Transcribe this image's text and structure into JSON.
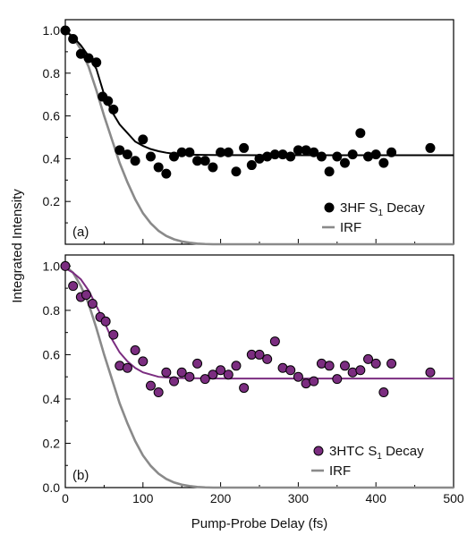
{
  "chart_data": [
    {
      "type": "scatter",
      "panel_label": "(a)",
      "title": "",
      "xlabel": "Pump-Probe Delay (fs)",
      "ylabel": "Integrated Intensity",
      "xlim": [
        0,
        500
      ],
      "ylim": [
        0,
        1.05
      ],
      "y_ticks": [
        "0.2",
        "0.4",
        "0.6",
        "0.8",
        "1.0"
      ],
      "legend_placement": "bottom-right",
      "series": [
        {
          "name": "3HF S1 Decay",
          "name_prefix": "3HF S",
          "name_sub": "1",
          "name_suffix": " Decay",
          "kind": "markers",
          "color": "#000000",
          "x": [
            0,
            10,
            20,
            30,
            40,
            48,
            55,
            62,
            70,
            80,
            90,
            100,
            110,
            120,
            130,
            140,
            150,
            160,
            170,
            180,
            190,
            200,
            210,
            220,
            230,
            240,
            250,
            260,
            270,
            280,
            290,
            300,
            310,
            320,
            330,
            340,
            350,
            360,
            370,
            380,
            390,
            400,
            410,
            420,
            470
          ],
          "y": [
            1.0,
            0.96,
            0.89,
            0.87,
            0.85,
            0.69,
            0.67,
            0.63,
            0.44,
            0.42,
            0.39,
            0.49,
            0.41,
            0.36,
            0.33,
            0.41,
            0.43,
            0.43,
            0.39,
            0.39,
            0.36,
            0.43,
            0.43,
            0.34,
            0.45,
            0.37,
            0.4,
            0.41,
            0.42,
            0.42,
            0.41,
            0.44,
            0.44,
            0.43,
            0.41,
            0.34,
            0.41,
            0.38,
            0.42,
            0.52,
            0.41,
            0.42,
            0.38,
            0.43,
            0.45
          ]
        },
        {
          "name": "3HF S1 Decay fit",
          "kind": "fit",
          "color": "#000000",
          "x": [
            0,
            10,
            20,
            30,
            40,
            50,
            60,
            70,
            80,
            90,
            100,
            110,
            120,
            130,
            140,
            150,
            175,
            200,
            250,
            300,
            350,
            400,
            450,
            500
          ],
          "y": [
            0.995,
            0.97,
            0.93,
            0.88,
            0.82,
            0.7,
            0.62,
            0.56,
            0.52,
            0.48,
            0.46,
            0.445,
            0.435,
            0.428,
            0.423,
            0.42,
            0.418,
            0.417,
            0.416,
            0.416,
            0.416,
            0.416,
            0.416,
            0.416
          ]
        },
        {
          "name": "IRF",
          "kind": "line",
          "color": "#8a8a8a",
          "x": [
            0,
            10,
            20,
            30,
            40,
            50,
            60,
            70,
            80,
            90,
            100,
            110,
            120,
            130,
            140,
            150,
            160,
            170,
            180,
            190,
            200,
            500
          ],
          "y": [
            1.0,
            0.97,
            0.91,
            0.83,
            0.72,
            0.6,
            0.49,
            0.38,
            0.29,
            0.21,
            0.145,
            0.098,
            0.063,
            0.039,
            0.023,
            0.013,
            0.007,
            0.003,
            0.001,
            0.0,
            0.0,
            0.0
          ]
        }
      ]
    },
    {
      "type": "scatter",
      "panel_label": "(b)",
      "title": "",
      "xlabel": "Pump-Probe Delay (fs)",
      "ylabel": "Integrated Intensity",
      "xlim": [
        0,
        500
      ],
      "ylim": [
        0,
        1.05
      ],
      "y_ticks": [
        "0.0",
        "0.2",
        "0.4",
        "0.6",
        "0.8",
        "1.0"
      ],
      "x_ticks": [
        "0",
        "100",
        "200",
        "300",
        "400",
        "500"
      ],
      "legend_placement": "bottom-right",
      "series": [
        {
          "name": "3HTC S1 Decay",
          "name_prefix": "3HTC S",
          "name_sub": "1",
          "name_suffix": " Decay",
          "kind": "markers",
          "color": "#7b2d80",
          "x": [
            0,
            10,
            20,
            27,
            35,
            45,
            52,
            62,
            70,
            80,
            90,
            100,
            110,
            120,
            130,
            140,
            150,
            160,
            170,
            180,
            190,
            200,
            210,
            220,
            230,
            240,
            250,
            260,
            270,
            280,
            290,
            300,
            310,
            320,
            330,
            340,
            350,
            360,
            370,
            380,
            390,
            400,
            410,
            420,
            470
          ],
          "y": [
            1.0,
            0.91,
            0.86,
            0.87,
            0.83,
            0.77,
            0.75,
            0.69,
            0.55,
            0.54,
            0.62,
            0.57,
            0.46,
            0.43,
            0.52,
            0.48,
            0.52,
            0.5,
            0.56,
            0.49,
            0.51,
            0.53,
            0.51,
            0.55,
            0.45,
            0.6,
            0.6,
            0.58,
            0.66,
            0.54,
            0.53,
            0.5,
            0.47,
            0.48,
            0.56,
            0.55,
            0.49,
            0.55,
            0.52,
            0.53,
            0.58,
            0.56,
            0.43,
            0.56,
            0.52
          ]
        },
        {
          "name": "3HTC S1 Decay fit",
          "kind": "fit",
          "color": "#7b2d80",
          "x": [
            0,
            10,
            20,
            30,
            40,
            50,
            60,
            70,
            80,
            90,
            100,
            110,
            120,
            130,
            140,
            150,
            175,
            200,
            250,
            300,
            350,
            400,
            450,
            500
          ],
          "y": [
            0.99,
            0.97,
            0.94,
            0.89,
            0.82,
            0.75,
            0.67,
            0.61,
            0.57,
            0.54,
            0.52,
            0.51,
            0.5,
            0.497,
            0.495,
            0.494,
            0.493,
            0.492,
            0.492,
            0.492,
            0.492,
            0.492,
            0.492,
            0.492
          ]
        },
        {
          "name": "IRF",
          "kind": "line",
          "color": "#8a8a8a",
          "x": [
            0,
            10,
            20,
            30,
            40,
            50,
            60,
            70,
            80,
            90,
            100,
            110,
            120,
            130,
            140,
            150,
            160,
            170,
            180,
            190,
            200,
            500
          ],
          "y": [
            1.0,
            0.97,
            0.91,
            0.83,
            0.72,
            0.6,
            0.49,
            0.38,
            0.29,
            0.21,
            0.145,
            0.098,
            0.063,
            0.039,
            0.023,
            0.013,
            0.007,
            0.003,
            0.001,
            0.0,
            0.0,
            0.0
          ]
        }
      ]
    }
  ]
}
